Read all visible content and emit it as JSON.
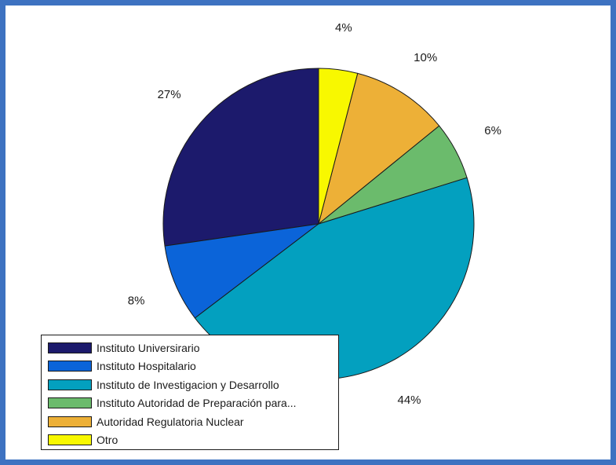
{
  "chart_data": {
    "type": "pie",
    "title": "",
    "categories": [
      "Instituto Universirario",
      "Instituto Hospitalario",
      "Instituto de Investigacion y Desarrollo",
      "Instituto Autoridad de Preparación para...",
      "Autoridad Regulatoria Nuclear",
      "Otro"
    ],
    "values": [
      27,
      8,
      44,
      6,
      10,
      4
    ],
    "labels": [
      "27%",
      "8%",
      "44%",
      "6%",
      "10%",
      "4%"
    ],
    "colors": [
      "#1c1a6c",
      "#0b64d9",
      "#03a0bf",
      "#6bbb6c",
      "#edb037",
      "#f8f800"
    ],
    "direction": "counterclockwise",
    "start": "12 o'clock",
    "legend_position": "bottom-left"
  }
}
